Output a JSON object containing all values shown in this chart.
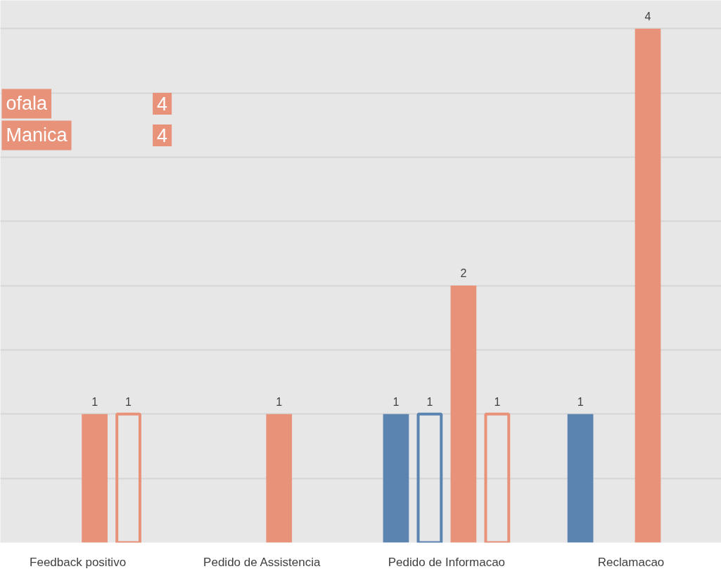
{
  "chart_data": {
    "type": "bar",
    "categories": [
      "Feedback positivo",
      "Pedido de Assistencia",
      "Pedido de Informacao",
      "Reclamacao"
    ],
    "series": [
      {
        "color": "#5b84b1",
        "values": [
          null,
          null,
          1,
          1
        ]
      },
      {
        "color": "#5b84b1",
        "values": [
          null,
          null,
          1,
          null
        ]
      },
      {
        "color": "#e8927a",
        "values": [
          1,
          1,
          2,
          4
        ]
      },
      {
        "color": "#e8927a",
        "values": [
          1,
          null,
          1,
          null
        ]
      }
    ],
    "ylim": [
      0,
      4.22
    ],
    "yticks": [
      {
        "value": 0,
        "label": null
      },
      {
        "value": 0.5,
        "label": null
      },
      {
        "value": 1,
        "label": null
      },
      {
        "value": 1.5,
        "label": null
      },
      {
        "value": 2,
        "label": null
      },
      {
        "value": 2.5,
        "label": null
      },
      {
        "value": 3,
        "label": null
      },
      {
        "value": 3.5,
        "label": null
      },
      {
        "value": 4,
        "label": null
      }
    ],
    "tick_labels": "x",
    "grid": "y",
    "data_labels": true,
    "annotations": [
      "ofala",
      "4",
      "Manica",
      "4"
    ]
  }
}
